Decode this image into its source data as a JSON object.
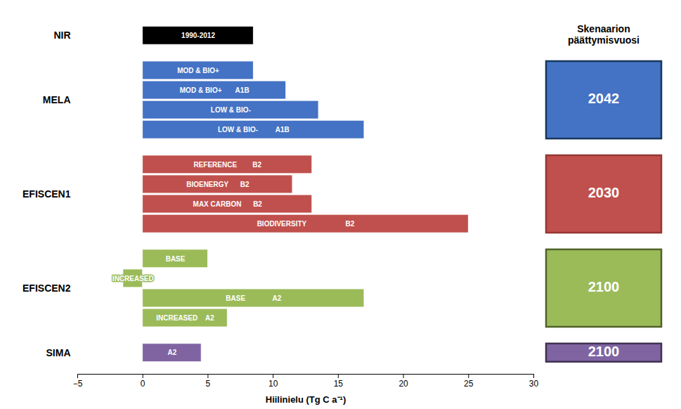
{
  "chart_data": {
    "type": "bar",
    "orientation": "horizontal",
    "xlabel": "Hiilinielu (Tg C a⁻¹)",
    "xlim": [
      -5,
      30
    ],
    "xticks": [
      -5,
      0,
      5,
      10,
      15,
      20,
      25,
      30
    ],
    "tick_labels": "x",
    "grid": false,
    "background_color": "#ffffff",
    "groups": [
      {
        "label": "NIR",
        "bars": [
          {
            "label": "1990-2012",
            "value": 8.5,
            "left": 0,
            "color": "#000000",
            "text_color": "#ffffff"
          }
        ]
      },
      {
        "label": "MELA",
        "bars": [
          {
            "label": "MOD & BIO+",
            "value": 8.5,
            "left": 0,
            "color": "#4472c4",
            "text_color": "#ffffff"
          },
          {
            "label": "MOD & BIO+       A1B",
            "value": 11.0,
            "left": 0,
            "color": "#4472c4",
            "text_color": "#ffffff"
          },
          {
            "label": "LOW & BIO-",
            "value": 13.5,
            "left": 0,
            "color": "#4472c4",
            "text_color": "#ffffff"
          },
          {
            "label": "LOW & BIO-         A1B",
            "value": 17.0,
            "left": 0,
            "color": "#4472c4",
            "text_color": "#ffffff"
          }
        ],
        "year_box": {
          "year": "2042",
          "color": "#4472c4",
          "border_color": "#17375e"
        }
      },
      {
        "label": "EFISCEN1",
        "bars": [
          {
            "label": "REFERENCE        B2",
            "value": 13.0,
            "left": 0,
            "color": "#c0504d",
            "text_color": "#ffffff"
          },
          {
            "label": "BIOENERGY      B2",
            "value": 11.5,
            "left": 0,
            "color": "#c0504d",
            "text_color": "#ffffff"
          },
          {
            "label": "MAX CARBON      B2",
            "value": 13.0,
            "left": 0,
            "color": "#c0504d",
            "text_color": "#ffffff"
          },
          {
            "label": "BIODIVERSITY                    B2",
            "value": 25.0,
            "left": 0,
            "color": "#c0504d",
            "text_color": "#ffffff"
          }
        ],
        "year_box": {
          "year": "2030",
          "color": "#c0504d",
          "border_color": "#963634"
        }
      },
      {
        "label": "EFISCEN2",
        "bars": [
          {
            "label": "BASE",
            "value": 5.0,
            "left": 0,
            "color": "#9bbb59",
            "text_color": "#ffffff"
          },
          {
            "label": "INCREASED",
            "value": 1.5,
            "left": -1.5,
            "color": "#9bbb59",
            "text_color": "#ffffff"
          },
          {
            "label": "BASE              A2",
            "value": 17.0,
            "left": 0,
            "color": "#9bbb59",
            "text_color": "#ffffff"
          },
          {
            "label": "INCREASED    A2",
            "value": 6.5,
            "left": 0,
            "color": "#9bbb59",
            "text_color": "#ffffff"
          }
        ],
        "year_box": {
          "year": "2100",
          "color": "#9bbb59",
          "border_color": "#4f6228"
        }
      },
      {
        "label": "SIMA",
        "bars": [
          {
            "label": "A2",
            "value": 4.5,
            "left": 0,
            "color": "#8064a2",
            "text_color": "#ffffff"
          }
        ],
        "year_box": {
          "year": "2100",
          "color": "#8064a2",
          "border_color": "#3f3151"
        }
      }
    ],
    "annotation": "Skenaarion\npäättymisvuosi"
  }
}
